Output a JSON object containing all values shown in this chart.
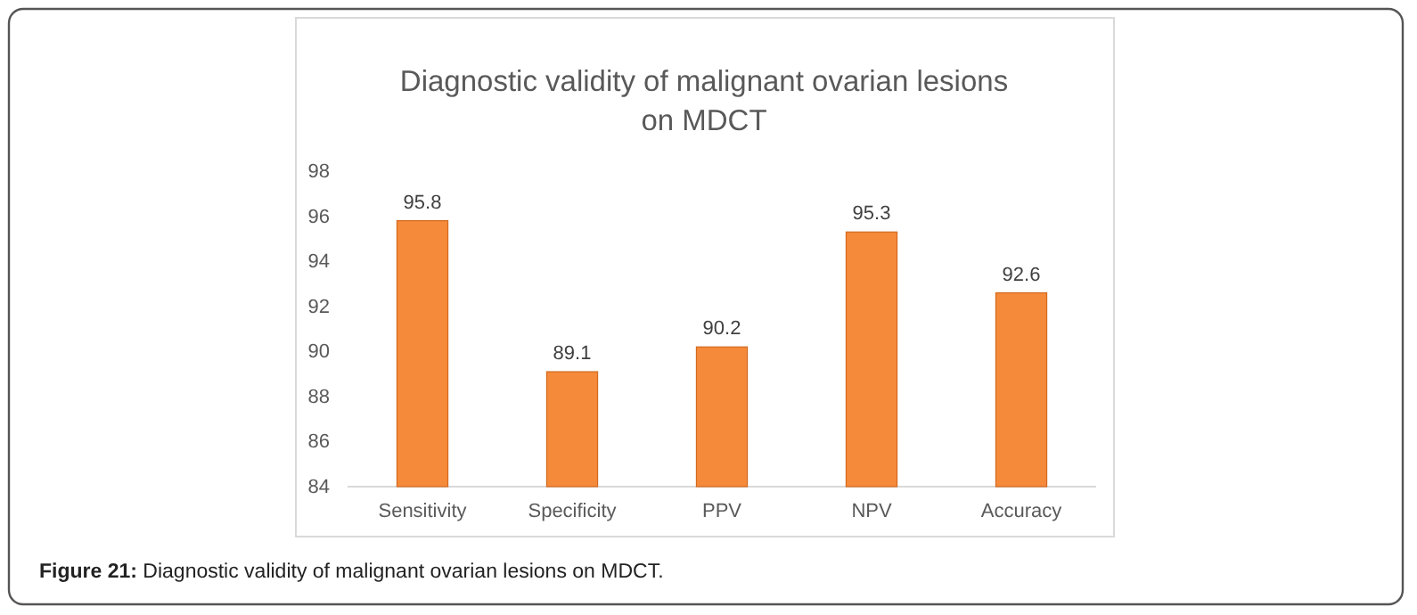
{
  "chart_data": {
    "type": "bar",
    "title": "Diagnostic validity of malignant ovarian lesions\non MDCT",
    "categories": [
      "Sensitivity",
      "Specificity",
      "PPV",
      "NPV",
      "Accuracy"
    ],
    "values": [
      95.8,
      89.1,
      90.2,
      95.3,
      92.6
    ],
    "color": "#f58a3a",
    "ylim": [
      84,
      98
    ],
    "yticks": [
      84,
      86,
      88,
      90,
      92,
      94,
      96,
      98
    ],
    "data_labels": true,
    "annotations": [
      "Figure 21: Diagnostic validity of malignant ovarian lesions on MDCT."
    ]
  }
}
